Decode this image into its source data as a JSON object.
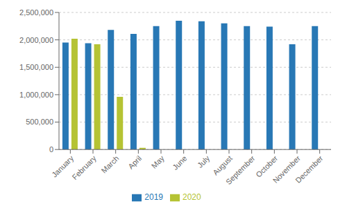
{
  "chart_data": {
    "type": "bar",
    "categories": [
      "January",
      "February",
      "March",
      "April",
      "May",
      "June",
      "July",
      "August",
      "September",
      "October",
      "November",
      "December"
    ],
    "series": [
      {
        "name": "2019",
        "color": "#2878b5",
        "values": [
          1950000,
          1940000,
          2180000,
          2110000,
          2250000,
          2350000,
          2340000,
          2300000,
          2250000,
          2240000,
          1920000,
          2250000
        ]
      },
      {
        "name": "2020",
        "color": "#b5c334",
        "values": [
          2020000,
          1920000,
          960000,
          30000,
          null,
          null,
          null,
          null,
          null,
          null,
          null,
          null
        ]
      }
    ],
    "ylim": [
      0,
      2500000
    ],
    "yticks": [
      0,
      {
        "value": 500000,
        "label": "500,000"
      },
      {
        "value": 1000000,
        "label": "1,000,000"
      },
      {
        "value": 1500000,
        "label": "1,500,000"
      },
      {
        "value": 2000000,
        "label": "2,000,000"
      },
      {
        "value": 2500000,
        "label": "2,500,000"
      }
    ],
    "grid": true,
    "legend": "bottom"
  }
}
